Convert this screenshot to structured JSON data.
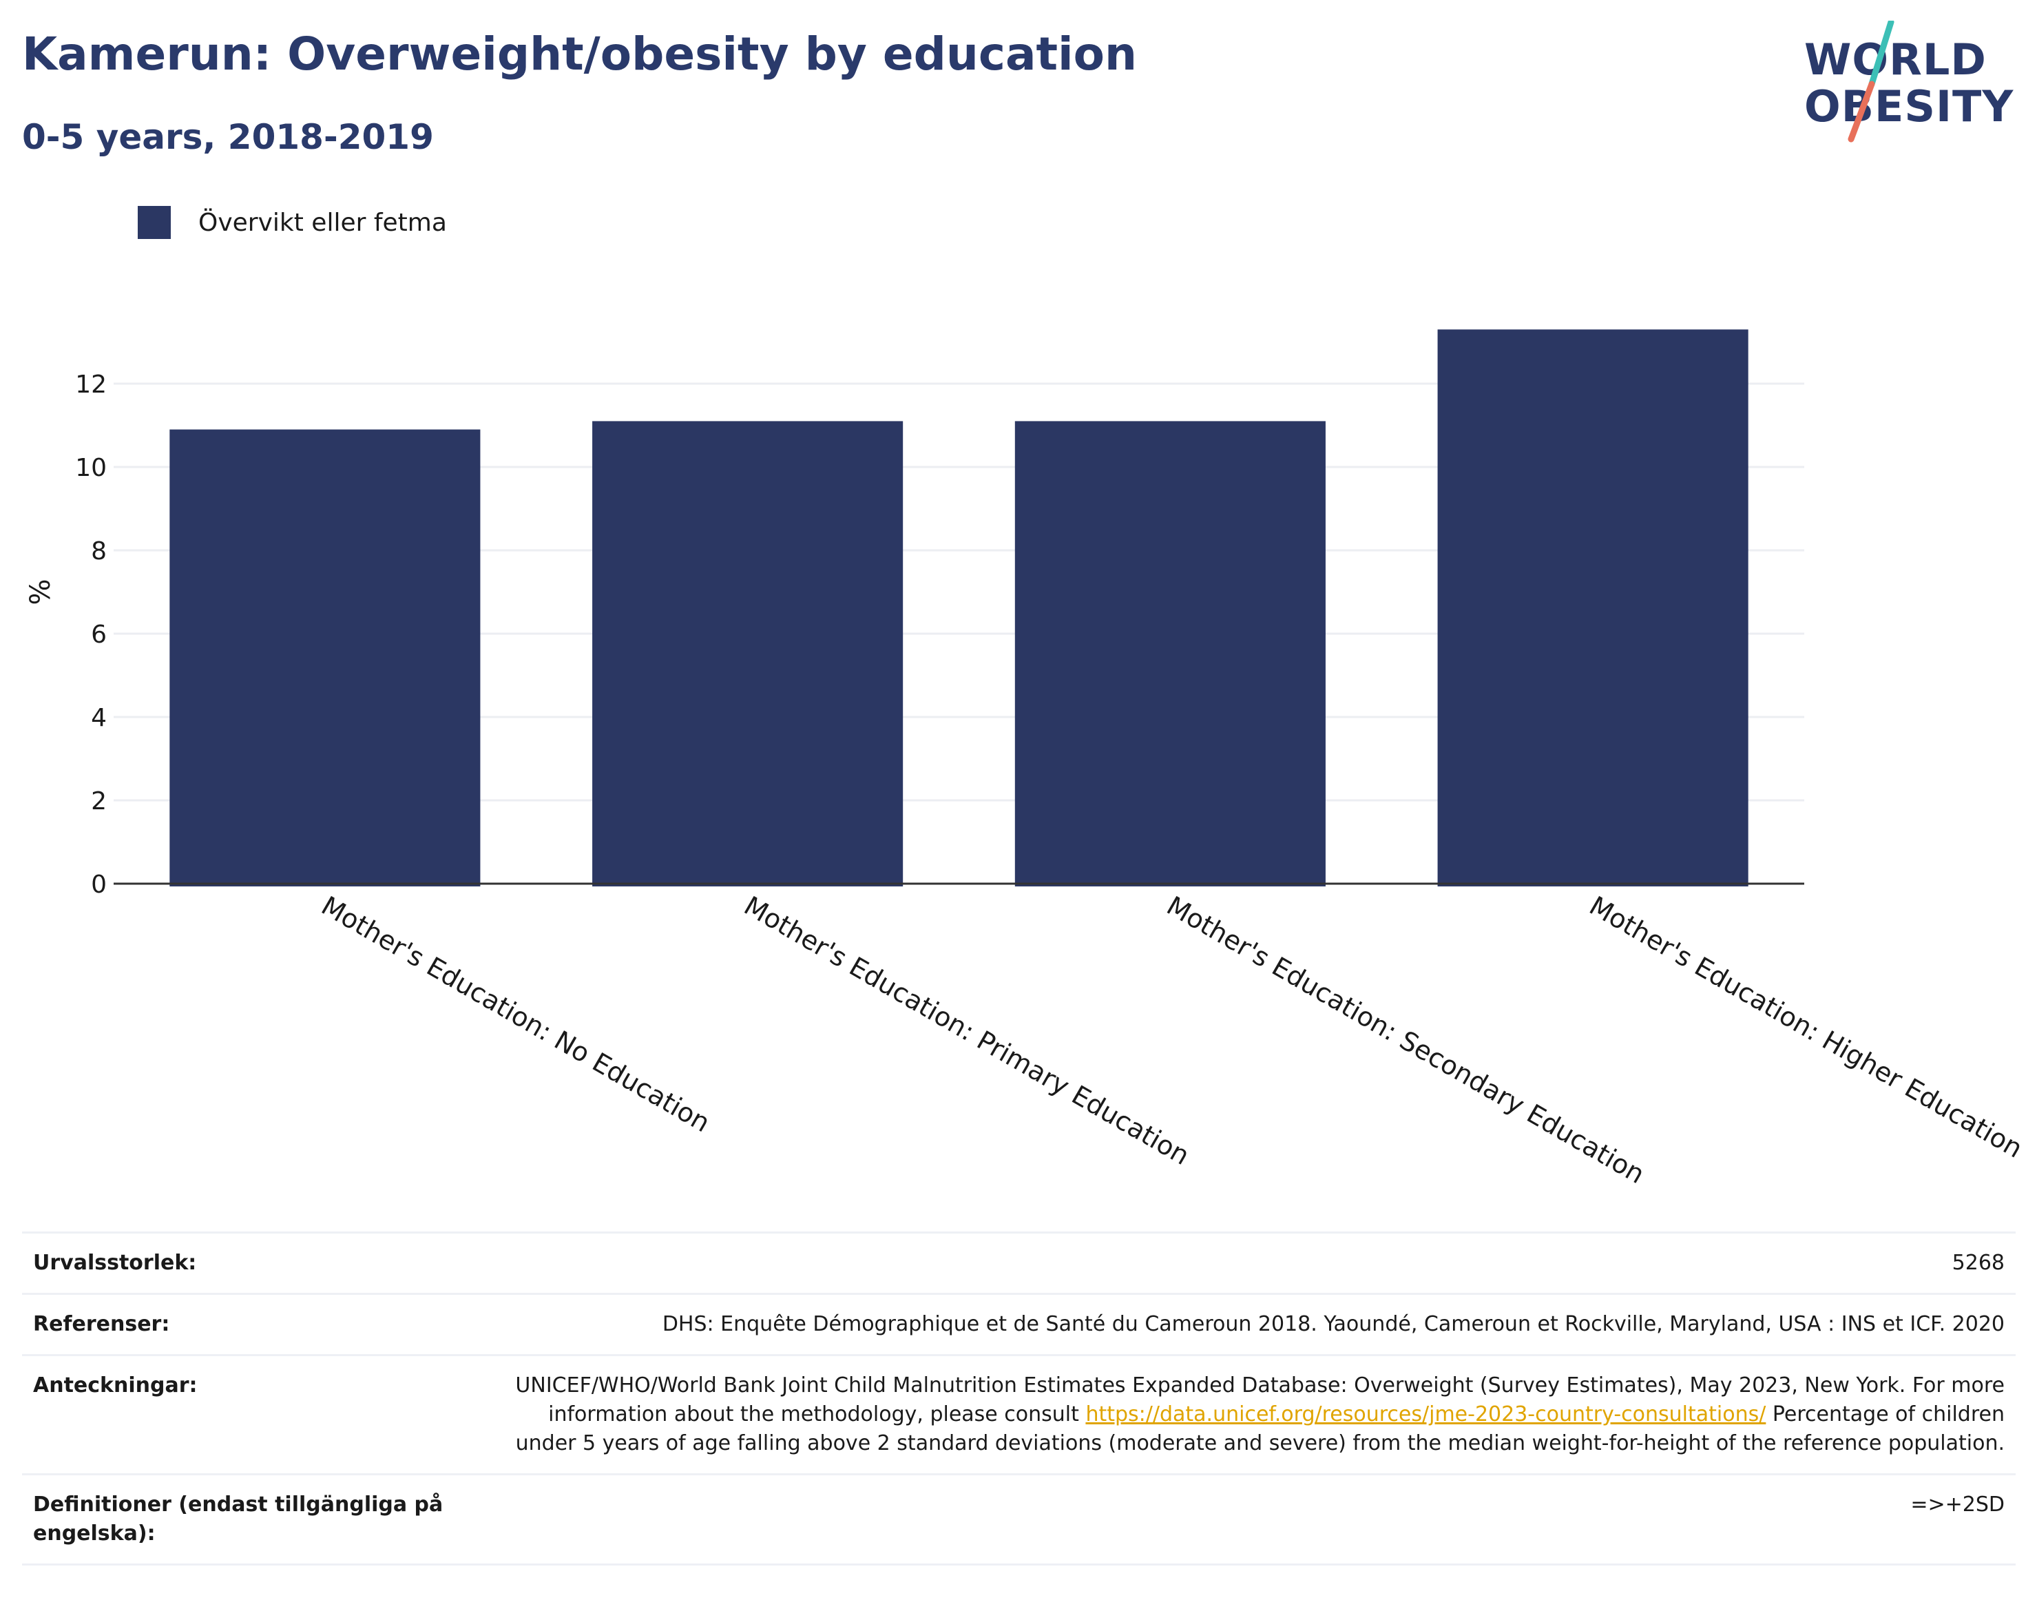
{
  "header": {
    "title": "Kamerun: Overweight/obesity by education",
    "subtitle": "0-5 years, 2018-2019"
  },
  "logo": {
    "line1": "WORLD",
    "line2": "OBESITY",
    "text_color": "#2a3a6b",
    "slash_colors": [
      "#3cbfb6",
      "#e8705a"
    ]
  },
  "legend": {
    "label": "Övervikt eller fetma",
    "color": "#2b3763"
  },
  "chart_data": {
    "type": "bar",
    "categories": [
      "Mother's Education: No Education",
      "Mother's Education: Primary Education",
      "Mother's Education: Secondary Education",
      "Mother's Education: Higher Education"
    ],
    "series": [
      {
        "name": "Övervikt eller fetma",
        "values": [
          10.9,
          11.1,
          11.1,
          13.3
        ]
      }
    ],
    "ylabel": "%",
    "xlabel": "",
    "ylim": [
      0,
      14
    ],
    "yticks": [
      0,
      2,
      4,
      6,
      8,
      10,
      12
    ],
    "grid": true,
    "legend_position": "top-left",
    "bar_color": "#2b3763"
  },
  "info": {
    "sample_size": {
      "label": "Urvalsstorlek:",
      "value": "5268"
    },
    "references": {
      "label": "Referenser:",
      "value": "DHS: Enquête Démographique et de Santé du Cameroun 2018. Yaoundé, Cameroun et Rockville, Maryland, USA : INS et ICF. 2020"
    },
    "notes": {
      "label": "Anteckningar:",
      "text_before": "UNICEF/WHO/World Bank Joint Child Malnutrition Estimates Expanded Database: Overweight (Survey Estimates), May 2023, New York. For more information about the methodology, please consult ",
      "link": "https://data.unicef.org/resources/jme-2023-country-consultations/",
      "text_after": " Percentage of children under 5 years of age falling above 2 standard deviations (moderate and severe) from the median weight-for-height of the reference population."
    },
    "definitions": {
      "label": "Definitioner (endast tillgängliga på engelska):",
      "value": "=>+2SD"
    }
  }
}
